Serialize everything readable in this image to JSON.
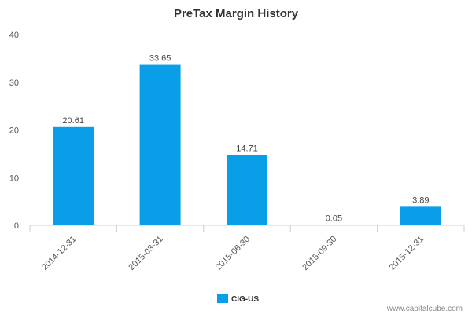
{
  "chart_data": {
    "type": "bar",
    "title": "PreTax Margin History",
    "categories": [
      "2014-12-31",
      "2015-03-31",
      "2015-06-30",
      "2015-09-30",
      "2015-12-31"
    ],
    "series": [
      {
        "name": "CIG-US",
        "values": [
          20.61,
          33.65,
          14.71,
          0.05,
          3.89
        ],
        "data_labels": [
          "20.61",
          "33.65",
          "14.71",
          "0.05",
          "3.89"
        ],
        "color": "#0a9ee8"
      }
    ],
    "y_ticks": [
      "0",
      "10",
      "20",
      "30",
      "40"
    ],
    "ylim": [
      0,
      40
    ],
    "grid": false,
    "legend_position": "bottom-center"
  },
  "credit": "www.capitalcube.com"
}
